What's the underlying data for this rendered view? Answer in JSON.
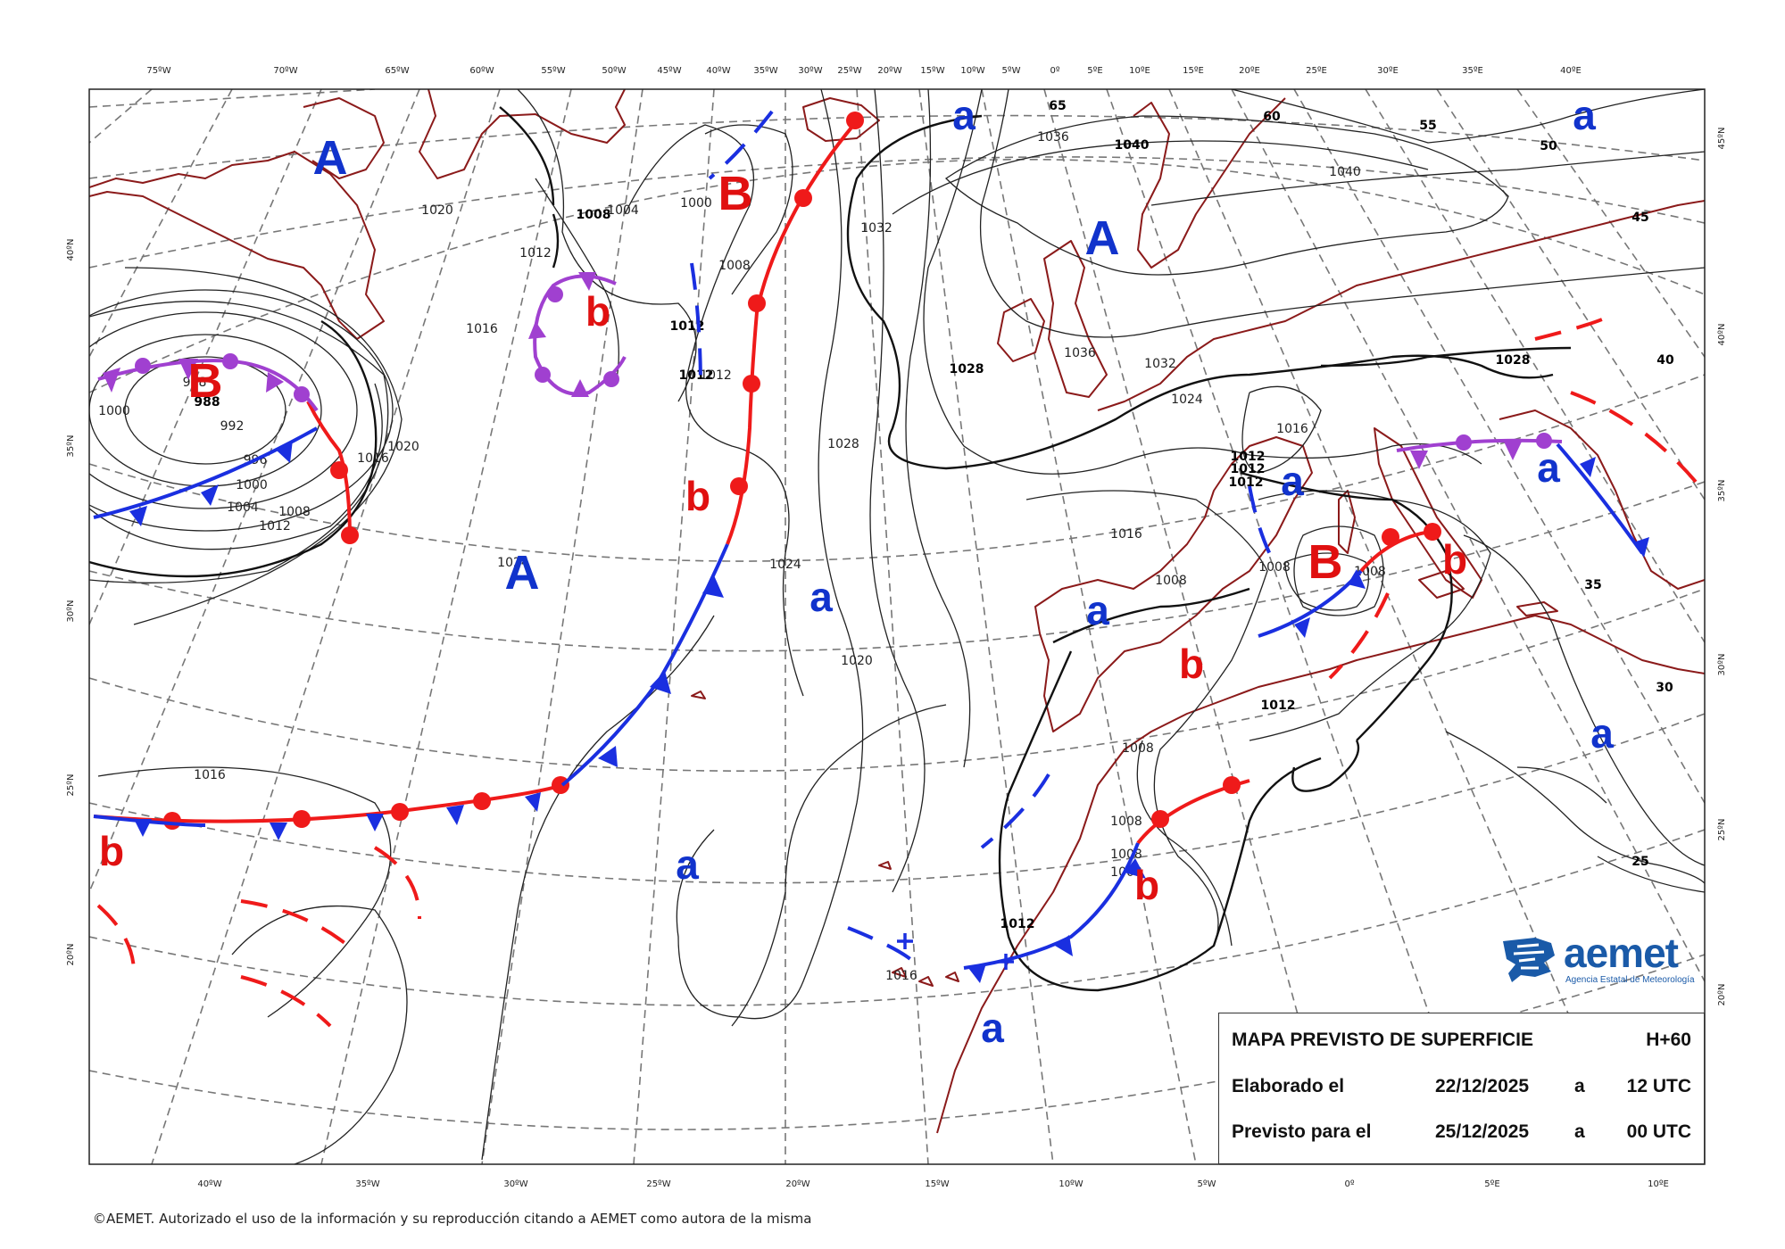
{
  "map": {
    "top_lon_labels": [
      "75ºW",
      "70ºW",
      "65ºW",
      "60ºW",
      "55ºW",
      "50ºW",
      "45ºW",
      "40ºW",
      "35ºW",
      "30ºW",
      "25ºW",
      "20ºW",
      "15ºW",
      "10ºW",
      "5ºW",
      "0º",
      "5ºE",
      "10ºE",
      "15ºE",
      "20ºE",
      "25ºE",
      "30ºE",
      "35ºE",
      "40ºE"
    ],
    "bottom_lon_labels": [
      "40ºW",
      "35ºW",
      "30ºW",
      "25ºW",
      "20ºW",
      "15ºW",
      "10ºW",
      "5ºW",
      "0º",
      "5ºE",
      "10ºE"
    ],
    "left_lat_labels": [
      "40ºN",
      "35ºN",
      "30ºN",
      "25ºN",
      "20ºN"
    ],
    "right_lat_labels": [
      "45ºN",
      "40ºN",
      "35ºN",
      "30ºN",
      "25ºN",
      "20ºN"
    ],
    "colors": {
      "coast": "#8b1a1a",
      "cold_front": "#1a2fe0",
      "warm_front": "#ef1a1a",
      "occluded_front": "#a040d0",
      "isobar": "#111111",
      "graticule": "#777777",
      "high": "#1133cc",
      "low": "#e01010"
    },
    "pressure_centers": [
      {
        "label": "A",
        "kind": "high"
      },
      {
        "label": "A",
        "kind": "high"
      },
      {
        "label": "A",
        "kind": "high"
      },
      {
        "label": "a",
        "kind": "high"
      },
      {
        "label": "a",
        "kind": "high"
      },
      {
        "label": "a",
        "kind": "high"
      },
      {
        "label": "a",
        "kind": "high"
      },
      {
        "label": "a",
        "kind": "high"
      },
      {
        "label": "a",
        "kind": "high"
      },
      {
        "label": "a",
        "kind": "high"
      },
      {
        "label": "a",
        "kind": "high"
      },
      {
        "label": "a",
        "kind": "high"
      },
      {
        "label": "B",
        "kind": "low"
      },
      {
        "label": "B",
        "kind": "low"
      },
      {
        "label": "B",
        "kind": "low"
      },
      {
        "label": "b",
        "kind": "low"
      },
      {
        "label": "b",
        "kind": "low"
      },
      {
        "label": "b",
        "kind": "low"
      },
      {
        "label": "b",
        "kind": "low"
      },
      {
        "label": "b",
        "kind": "low"
      },
      {
        "label": "b",
        "kind": "low"
      }
    ],
    "isobar_labels": [
      "1020",
      "1008",
      "1004",
      "1012",
      "1000",
      "1016",
      "1012",
      "1012",
      "1024",
      "1024",
      "1020",
      "1016",
      "1000",
      "988",
      "988",
      "992",
      "996",
      "1000",
      "1004",
      "1008",
      "1012",
      "1016",
      "1020",
      "1012",
      "1008",
      "1036",
      "1040",
      "1040",
      "1032",
      "1036",
      "1032",
      "1028",
      "1028",
      "1024",
      "1016",
      "1028",
      "1012",
      "1012",
      "1012",
      "1016",
      "1008",
      "1008",
      "1008",
      "1012",
      "1008",
      "1008",
      "1008",
      "1008",
      "1012",
      "1016"
    ],
    "edge_values": [
      "65",
      "60",
      "55",
      "50",
      "45",
      "40",
      "35",
      "30",
      "25"
    ]
  },
  "info": {
    "title": "MAPA PREVISTO DE SUPERFICIE",
    "step": "H+60",
    "made_label": "Elaborado el",
    "made_date": "22/12/2025",
    "made_sep": "a",
    "made_time": "12 UTC",
    "valid_label": "Previsto para el",
    "valid_date": "25/12/2025",
    "valid_sep": "a",
    "valid_time": "00 UTC"
  },
  "logo": {
    "name": "aemet",
    "agency": "Agencia Estatal de Meteorología"
  },
  "copyright": "©AEMET. Autorizado el uso de la información y su reproducción citando a AEMET como autora de la misma"
}
